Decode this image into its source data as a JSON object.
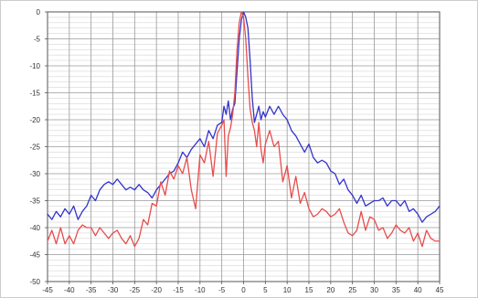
{
  "chart_data": {
    "type": "line",
    "title": "",
    "xlabel": "",
    "ylabel": "",
    "xlim": [
      -45,
      45
    ],
    "ylim": [
      -50,
      0
    ],
    "grid": true,
    "legend": "none",
    "x_ticks": [
      -45,
      -40,
      -35,
      -30,
      -25,
      -20,
      -15,
      -10,
      -5,
      0,
      5,
      10,
      15,
      20,
      25,
      30,
      35,
      40,
      45
    ],
    "y_ticks": [
      0,
      -5,
      -10,
      -15,
      -20,
      -25,
      -30,
      -35,
      -40,
      -45,
      -50
    ],
    "x_tick_labels": [
      "-45",
      "-40",
      "-35",
      "-30",
      "-25",
      "-20",
      "-15",
      "-10",
      "-5",
      "0",
      "5",
      "10",
      "15",
      "20",
      "25",
      "30",
      "35",
      "40",
      "45"
    ],
    "y_tick_labels": [
      "0",
      "-5",
      "-10",
      "-15",
      "-20",
      "-25",
      "-30",
      "-35",
      "-40",
      "-45",
      "-50"
    ],
    "series": [
      {
        "color": "#3333cc",
        "x": [
          -45,
          -44,
          -43,
          -42,
          -41,
          -40,
          -39,
          -38,
          -37,
          -36,
          -35,
          -34,
          -33,
          -32,
          -31,
          -30,
          -29,
          -28,
          -27,
          -26,
          -25,
          -24,
          -23,
          -22,
          -21,
          -20,
          -19,
          -18,
          -17,
          -16,
          -15,
          -14,
          -13,
          -12,
          -11,
          -10,
          -9,
          -8,
          -7,
          -6,
          -5,
          -4.5,
          -4,
          -3.5,
          -3,
          -2.5,
          -2,
          -1.5,
          -1,
          -0.5,
          0,
          0.5,
          1,
          1.5,
          2,
          2.5,
          3,
          3.5,
          4,
          4.5,
          5,
          6,
          7,
          8,
          9,
          10,
          11,
          12,
          13,
          14,
          15,
          16,
          17,
          18,
          19,
          20,
          21,
          22,
          23,
          24,
          25,
          26,
          27,
          28,
          29,
          30,
          31,
          32,
          33,
          34,
          35,
          36,
          37,
          38,
          39,
          40,
          41,
          42,
          43,
          44,
          45
        ],
        "y": [
          -37.5,
          -38.5,
          -37,
          -38,
          -36.5,
          -37.5,
          -36,
          -38.5,
          -37,
          -36,
          -34,
          -35,
          -33,
          -32,
          -31.5,
          -32,
          -31,
          -32,
          -33,
          -32.5,
          -33,
          -32,
          -33,
          -33.5,
          -34.5,
          -33,
          -32,
          -31,
          -30,
          -29.5,
          -28,
          -26,
          -27,
          -25.5,
          -24.5,
          -23.5,
          -25,
          -22,
          -23.5,
          -21,
          -20.5,
          -17.5,
          -19,
          -16.5,
          -20,
          -18,
          -17,
          -11,
          -5,
          -1.5,
          0,
          -1,
          -3,
          -9,
          -16,
          -20.5,
          -19,
          -17.5,
          -20,
          -18.5,
          -19.5,
          -17.5,
          -19,
          -17.5,
          -19,
          -20,
          -22,
          -23,
          -24.5,
          -26,
          -24.5,
          -27,
          -28,
          -27.5,
          -28,
          -29.5,
          -30,
          -32,
          -31,
          -33,
          -34,
          -35.5,
          -34,
          -36,
          -35.5,
          -35,
          -35,
          -34.5,
          -36,
          -35,
          -35,
          -36,
          -35,
          -37,
          -36.5,
          -37.5,
          -39,
          -38,
          -37.5,
          -37,
          -36
        ]
      },
      {
        "color": "#e84c4c",
        "x": [
          -45,
          -44,
          -43,
          -42,
          -41,
          -40,
          -39,
          -38,
          -37,
          -36,
          -35,
          -34,
          -33,
          -32,
          -31,
          -30,
          -29,
          -28,
          -27,
          -26,
          -25,
          -24,
          -23,
          -22,
          -21,
          -20,
          -19,
          -18,
          -17,
          -16,
          -15,
          -14,
          -13,
          -12,
          -11,
          -10,
          -9,
          -8,
          -7,
          -6,
          -5,
          -4.5,
          -4,
          -3.5,
          -3,
          -2.5,
          -2,
          -1.5,
          -1,
          -0.5,
          0,
          0.5,
          1,
          1.5,
          2,
          2.5,
          3,
          3.5,
          4,
          4.5,
          5,
          6,
          7,
          8,
          9,
          10,
          11,
          12,
          13,
          14,
          15,
          16,
          17,
          18,
          19,
          20,
          21,
          22,
          23,
          24,
          25,
          26,
          27,
          28,
          29,
          30,
          31,
          32,
          33,
          34,
          35,
          36,
          37,
          38,
          39,
          40,
          41,
          42,
          43,
          44,
          45
        ],
        "y": [
          -42.5,
          -40.5,
          -43,
          -40,
          -43,
          -41.5,
          -43,
          -40.5,
          -39.5,
          -40,
          -40,
          -41.5,
          -40,
          -41,
          -42,
          -41,
          -40.5,
          -42,
          -43,
          -41.5,
          -43.5,
          -42,
          -38.5,
          -39.5,
          -35.5,
          -36,
          -31.5,
          -34,
          -29.5,
          -31,
          -28.5,
          -30,
          -27,
          -33,
          -36.5,
          -26.5,
          -28,
          -24,
          -30.5,
          -22.5,
          -21,
          -20,
          -30.5,
          -23,
          -21.5,
          -19,
          -15,
          -7,
          -2,
          0,
          -1,
          -5,
          -12,
          -18,
          -20.5,
          -22,
          -25,
          -20.5,
          -25.5,
          -28,
          -24.5,
          -22,
          -25,
          -24,
          -31.5,
          -28.5,
          -34.5,
          -30.5,
          -35.5,
          -33.5,
          -36.5,
          -38,
          -37.5,
          -36.5,
          -37,
          -38,
          -37.5,
          -36.5,
          -39,
          -41,
          -41.5,
          -40.5,
          -37,
          -40.5,
          -38,
          -38.5,
          -40.5,
          -40,
          -42,
          -41,
          -39.5,
          -40.5,
          -41,
          -40,
          -42.5,
          -41,
          -43.5,
          -40.5,
          -42,
          -42.5,
          -42.5
        ]
      }
    ]
  }
}
